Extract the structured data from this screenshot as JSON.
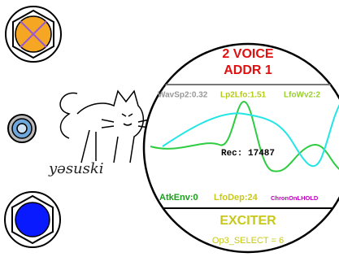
{
  "brand": "yəsuski",
  "display": {
    "title": [
      "2 VOICE",
      "ADDR 1"
    ],
    "params_top": [
      "WavSp2:0.32",
      "Lp2Lfo:1.51",
      "LfoWv2:2"
    ],
    "readout": "Rec: 17487",
    "params_bottom": [
      "AtkEnv:0",
      "LfoDep:24",
      "ChronOnLHOLD"
    ],
    "mode": "EXCITER",
    "selection": "Op3_SELECT = 6"
  }
}
